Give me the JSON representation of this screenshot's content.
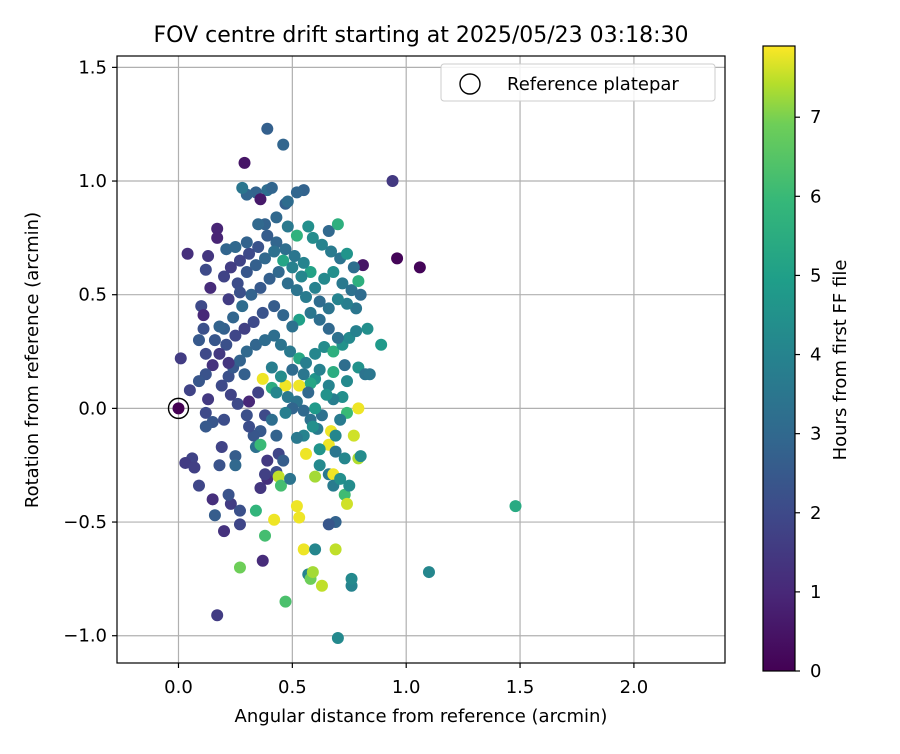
{
  "chart_data": {
    "type": "scatter",
    "title": "FOV centre drift starting at 2025/05/23 03:18:30",
    "xlabel": "Angular distance from reference (arcmin)",
    "ylabel": "Rotation from reference (arcmin)",
    "xlim": [
      -0.27,
      2.4
    ],
    "ylim": [
      -1.12,
      1.55
    ],
    "x_ticks": [
      0.0,
      0.5,
      1.0,
      1.5,
      2.0
    ],
    "x_tick_labels": [
      "0.0",
      "0.5",
      "1.0",
      "1.5",
      "2.0"
    ],
    "y_ticks": [
      -1.0,
      -0.5,
      0.0,
      0.5,
      1.0,
      1.5
    ],
    "y_tick_labels": [
      "−1.0",
      "−0.5",
      "0.0",
      "0.5",
      "1.0",
      "1.5"
    ],
    "grid": true,
    "legend": {
      "position": "top-right",
      "entries": [
        "Reference platepar"
      ]
    },
    "reference_point": {
      "x": 0.0,
      "y": 0.0
    },
    "colorbar": {
      "label": "Hours from first FF file",
      "range": [
        0,
        7.9
      ],
      "ticks": [
        0,
        1,
        2,
        3,
        4,
        5,
        6,
        7
      ],
      "tick_labels": [
        "0",
        "1",
        "2",
        "3",
        "4",
        "5",
        "6",
        "7"
      ],
      "colormap": "viridis"
    },
    "points": [
      {
        "x": 0.29,
        "y": 1.08,
        "c": 0.5
      },
      {
        "x": 0.39,
        "y": 1.23,
        "c": 2.7
      },
      {
        "x": 0.46,
        "y": 1.16,
        "c": 2.9
      },
      {
        "x": 0.94,
        "y": 1.0,
        "c": 1.5
      },
      {
        "x": 0.96,
        "y": 0.66,
        "c": 0.1
      },
      {
        "x": 1.06,
        "y": 0.62,
        "c": 0.1
      },
      {
        "x": 0.81,
        "y": 0.63,
        "c": 0.5
      },
      {
        "x": 0.17,
        "y": 0.79,
        "c": 0.9
      },
      {
        "x": 0.17,
        "y": 0.75,
        "c": 0.9
      },
      {
        "x": 0.13,
        "y": 0.67,
        "c": 1.4
      },
      {
        "x": 0.04,
        "y": 0.68,
        "c": 1.2
      },
      {
        "x": 0.12,
        "y": 0.61,
        "c": 2.0
      },
      {
        "x": 0.14,
        "y": 0.53,
        "c": 1.1
      },
      {
        "x": 0.1,
        "y": 0.45,
        "c": 2.0
      },
      {
        "x": 0.11,
        "y": 0.41,
        "c": 1.0
      },
      {
        "x": 0.11,
        "y": 0.35,
        "c": 2.2
      },
      {
        "x": 0.09,
        "y": 0.3,
        "c": 2.5
      },
      {
        "x": 0.12,
        "y": 0.24,
        "c": 2.0
      },
      {
        "x": 0.15,
        "y": 0.19,
        "c": 1.3
      },
      {
        "x": 0.01,
        "y": 0.22,
        "c": 1.6
      },
      {
        "x": 0.12,
        "y": 0.15,
        "c": 2.3
      },
      {
        "x": 0.09,
        "y": 0.12,
        "c": 2.4
      },
      {
        "x": 0.05,
        "y": 0.08,
        "c": 1.8
      },
      {
        "x": 0.13,
        "y": 0.04,
        "c": 1.5
      },
      {
        "x": 0.0,
        "y": 0.0,
        "c": 0.0
      },
      {
        "x": 0.12,
        "y": -0.02,
        "c": 2.0
      },
      {
        "x": 0.15,
        "y": -0.06,
        "c": 2.4
      },
      {
        "x": 0.12,
        "y": -0.08,
        "c": 2.5
      },
      {
        "x": 0.2,
        "y": -0.05,
        "c": 2.1
      },
      {
        "x": 0.06,
        "y": -0.22,
        "c": 1.8
      },
      {
        "x": 0.03,
        "y": -0.24,
        "c": 1.6
      },
      {
        "x": 0.07,
        "y": -0.26,
        "c": 1.7
      },
      {
        "x": 0.18,
        "y": -0.25,
        "c": 2.3
      },
      {
        "x": 0.19,
        "y": -0.17,
        "c": 1.8
      },
      {
        "x": 0.09,
        "y": -0.34,
        "c": 1.9
      },
      {
        "x": 0.15,
        "y": -0.4,
        "c": 1.2
      },
      {
        "x": 0.16,
        "y": -0.47,
        "c": 2.6
      },
      {
        "x": 0.2,
        "y": -0.54,
        "c": 1.3
      },
      {
        "x": 0.27,
        "y": -0.51,
        "c": 1.9
      },
      {
        "x": 0.23,
        "y": -0.42,
        "c": 1.6
      },
      {
        "x": 0.22,
        "y": -0.38,
        "c": 2.3
      },
      {
        "x": 0.27,
        "y": -0.45,
        "c": 2.2
      },
      {
        "x": 0.17,
        "y": -0.91,
        "c": 1.6
      },
      {
        "x": 0.27,
        "y": -0.7,
        "c": 6.9
      },
      {
        "x": 0.37,
        "y": -0.67,
        "c": 1.1
      },
      {
        "x": 0.38,
        "y": -0.56,
        "c": 6.2
      },
      {
        "x": 0.34,
        "y": -0.45,
        "c": 5.8
      },
      {
        "x": 0.42,
        "y": -0.49,
        "c": 7.8
      },
      {
        "x": 0.47,
        "y": -0.85,
        "c": 6.3
      },
      {
        "x": 0.52,
        "y": -0.43,
        "c": 7.8
      },
      {
        "x": 0.53,
        "y": -0.48,
        "c": 7.8
      },
      {
        "x": 0.55,
        "y": -0.62,
        "c": 7.8
      },
      {
        "x": 0.57,
        "y": -0.73,
        "c": 4.0
      },
      {
        "x": 0.58,
        "y": -0.75,
        "c": 6.9
      },
      {
        "x": 0.59,
        "y": -0.72,
        "c": 7.3
      },
      {
        "x": 0.6,
        "y": -0.62,
        "c": 4.1
      },
      {
        "x": 0.63,
        "y": -0.78,
        "c": 7.5
      },
      {
        "x": 0.69,
        "y": -0.62,
        "c": 7.5
      },
      {
        "x": 0.7,
        "y": -1.01,
        "c": 4.2
      },
      {
        "x": 0.76,
        "y": -0.78,
        "c": 4.0
      },
      {
        "x": 0.76,
        "y": -0.75,
        "c": 4.2
      },
      {
        "x": 1.1,
        "y": -0.72,
        "c": 4.1
      },
      {
        "x": 1.48,
        "y": -0.43,
        "c": 5.4
      },
      {
        "x": 0.39,
        "y": -0.31,
        "c": 1.2
      },
      {
        "x": 0.36,
        "y": -0.35,
        "c": 1.4
      },
      {
        "x": 0.38,
        "y": -0.29,
        "c": 1.7
      },
      {
        "x": 0.43,
        "y": -0.28,
        "c": 2.1
      },
      {
        "x": 0.44,
        "y": -0.3,
        "c": 7.5
      },
      {
        "x": 0.45,
        "y": -0.34,
        "c": 6.2
      },
      {
        "x": 0.49,
        "y": -0.31,
        "c": 3.4
      },
      {
        "x": 0.6,
        "y": -0.3,
        "c": 7.3
      },
      {
        "x": 0.62,
        "y": -0.25,
        "c": 4.2
      },
      {
        "x": 0.66,
        "y": -0.29,
        "c": 3.6
      },
      {
        "x": 0.68,
        "y": -0.29,
        "c": 7.8
      },
      {
        "x": 0.68,
        "y": -0.34,
        "c": 3.7
      },
      {
        "x": 0.71,
        "y": -0.31,
        "c": 4.4
      },
      {
        "x": 0.73,
        "y": -0.38,
        "c": 6.1
      },
      {
        "x": 0.75,
        "y": -0.34,
        "c": 4.3
      },
      {
        "x": 0.74,
        "y": -0.42,
        "c": 7.6
      },
      {
        "x": 0.69,
        "y": -0.5,
        "c": 2.8
      },
      {
        "x": 0.66,
        "y": -0.51,
        "c": 2.4
      },
      {
        "x": 0.79,
        "y": -0.22,
        "c": 7.4
      },
      {
        "x": 0.8,
        "y": -0.21,
        "c": 4.3
      },
      {
        "x": 0.77,
        "y": -0.12,
        "c": 7.6
      },
      {
        "x": 0.67,
        "y": -0.1,
        "c": 7.8
      },
      {
        "x": 0.66,
        "y": -0.16,
        "c": 7.8
      },
      {
        "x": 0.69,
        "y": -0.12,
        "c": 4.1
      },
      {
        "x": 0.79,
        "y": 0.0,
        "c": 7.8
      },
      {
        "x": 0.74,
        "y": -0.02,
        "c": 6.0
      },
      {
        "x": 0.72,
        "y": 0.05,
        "c": 4.4
      },
      {
        "x": 0.68,
        "y": 0.04,
        "c": 3.8
      },
      {
        "x": 0.74,
        "y": 0.12,
        "c": 4.2
      },
      {
        "x": 0.73,
        "y": 0.19,
        "c": 3.2
      },
      {
        "x": 0.79,
        "y": 0.18,
        "c": 4.5
      },
      {
        "x": 0.82,
        "y": 0.15,
        "c": 3.4
      },
      {
        "x": 0.66,
        "y": 0.1,
        "c": 4.0
      },
      {
        "x": 0.68,
        "y": 0.16,
        "c": 5.5
      },
      {
        "x": 0.6,
        "y": 0.13,
        "c": 4.6
      },
      {
        "x": 0.58,
        "y": 0.11,
        "c": 5.2
      },
      {
        "x": 0.53,
        "y": 0.1,
        "c": 7.8
      },
      {
        "x": 0.47,
        "y": 0.1,
        "c": 7.8
      },
      {
        "x": 0.37,
        "y": 0.13,
        "c": 7.8
      },
      {
        "x": 0.41,
        "y": 0.09,
        "c": 5.5
      },
      {
        "x": 0.43,
        "y": 0.07,
        "c": 4.1
      },
      {
        "x": 0.48,
        "y": 0.05,
        "c": 3.6
      },
      {
        "x": 0.52,
        "y": 0.03,
        "c": 3.4
      },
      {
        "x": 0.5,
        "y": 0.0,
        "c": 2.9
      },
      {
        "x": 0.55,
        "y": -0.01,
        "c": 3.0
      },
      {
        "x": 0.58,
        "y": -0.05,
        "c": 3.3
      },
      {
        "x": 0.61,
        "y": -0.09,
        "c": 3.7
      },
      {
        "x": 0.55,
        "y": -0.12,
        "c": 4.0
      },
      {
        "x": 0.52,
        "y": -0.13,
        "c": 3.6
      },
      {
        "x": 0.43,
        "y": -0.12,
        "c": 2.8
      },
      {
        "x": 0.36,
        "y": -0.1,
        "c": 2.5
      },
      {
        "x": 0.33,
        "y": -0.12,
        "c": 2.4
      },
      {
        "x": 0.31,
        "y": -0.08,
        "c": 2.1
      },
      {
        "x": 0.25,
        "y": -0.21,
        "c": 2.6
      },
      {
        "x": 0.25,
        "y": -0.25,
        "c": 3.0
      },
      {
        "x": 0.34,
        "y": -0.17,
        "c": 3.3
      },
      {
        "x": 0.3,
        "y": -0.03,
        "c": 2.2
      },
      {
        "x": 0.26,
        "y": 0.02,
        "c": 2.0
      },
      {
        "x": 0.23,
        "y": 0.06,
        "c": 1.8
      },
      {
        "x": 0.19,
        "y": 0.1,
        "c": 2.0
      },
      {
        "x": 0.22,
        "y": 0.14,
        "c": 2.2
      },
      {
        "x": 0.24,
        "y": 0.18,
        "c": 2.5
      },
      {
        "x": 0.27,
        "y": 0.21,
        "c": 2.8
      },
      {
        "x": 0.3,
        "y": 0.25,
        "c": 3.0
      },
      {
        "x": 0.34,
        "y": 0.28,
        "c": 2.9
      },
      {
        "x": 0.38,
        "y": 0.3,
        "c": 3.1
      },
      {
        "x": 0.42,
        "y": 0.32,
        "c": 3.2
      },
      {
        "x": 0.45,
        "y": 0.28,
        "c": 3.4
      },
      {
        "x": 0.49,
        "y": 0.25,
        "c": 3.6
      },
      {
        "x": 0.53,
        "y": 0.22,
        "c": 5.3
      },
      {
        "x": 0.56,
        "y": 0.2,
        "c": 3.8
      },
      {
        "x": 0.6,
        "y": 0.24,
        "c": 4.1
      },
      {
        "x": 0.64,
        "y": 0.27,
        "c": 4.3
      },
      {
        "x": 0.68,
        "y": 0.25,
        "c": 5.6
      },
      {
        "x": 0.72,
        "y": 0.28,
        "c": 4.5
      },
      {
        "x": 0.75,
        "y": 0.31,
        "c": 4.2
      },
      {
        "x": 0.78,
        "y": 0.34,
        "c": 3.9
      },
      {
        "x": 0.83,
        "y": 0.35,
        "c": 4.4
      },
      {
        "x": 0.89,
        "y": 0.28,
        "c": 4.8
      },
      {
        "x": 0.84,
        "y": 0.15,
        "c": 3.5
      },
      {
        "x": 0.7,
        "y": 0.31,
        "c": 3.3
      },
      {
        "x": 0.66,
        "y": 0.35,
        "c": 3.0
      },
      {
        "x": 0.62,
        "y": 0.39,
        "c": 3.2
      },
      {
        "x": 0.58,
        "y": 0.42,
        "c": 3.5
      },
      {
        "x": 0.53,
        "y": 0.39,
        "c": 5.0
      },
      {
        "x": 0.5,
        "y": 0.36,
        "c": 3.3
      },
      {
        "x": 0.46,
        "y": 0.41,
        "c": 2.9
      },
      {
        "x": 0.42,
        "y": 0.45,
        "c": 2.6
      },
      {
        "x": 0.37,
        "y": 0.42,
        "c": 2.3
      },
      {
        "x": 0.33,
        "y": 0.38,
        "c": 2.0
      },
      {
        "x": 0.29,
        "y": 0.35,
        "c": 1.7
      },
      {
        "x": 0.25,
        "y": 0.32,
        "c": 1.9
      },
      {
        "x": 0.21,
        "y": 0.28,
        "c": 2.2
      },
      {
        "x": 0.18,
        "y": 0.24,
        "c": 1.5
      },
      {
        "x": 0.16,
        "y": 0.3,
        "c": 2.4
      },
      {
        "x": 0.2,
        "y": 0.35,
        "c": 2.7
      },
      {
        "x": 0.24,
        "y": 0.4,
        "c": 2.9
      },
      {
        "x": 0.28,
        "y": 0.45,
        "c": 3.1
      },
      {
        "x": 0.32,
        "y": 0.5,
        "c": 2.8
      },
      {
        "x": 0.36,
        "y": 0.53,
        "c": 2.5
      },
      {
        "x": 0.4,
        "y": 0.57,
        "c": 2.7
      },
      {
        "x": 0.44,
        "y": 0.6,
        "c": 3.0
      },
      {
        "x": 0.48,
        "y": 0.55,
        "c": 3.2
      },
      {
        "x": 0.52,
        "y": 0.52,
        "c": 3.4
      },
      {
        "x": 0.56,
        "y": 0.49,
        "c": 3.7
      },
      {
        "x": 0.6,
        "y": 0.53,
        "c": 3.9
      },
      {
        "x": 0.64,
        "y": 0.57,
        "c": 4.2
      },
      {
        "x": 0.68,
        "y": 0.6,
        "c": 4.4
      },
      {
        "x": 0.72,
        "y": 0.55,
        "c": 3.6
      },
      {
        "x": 0.76,
        "y": 0.52,
        "c": 3.3
      },
      {
        "x": 0.8,
        "y": 0.5,
        "c": 3.1
      },
      {
        "x": 0.78,
        "y": 0.44,
        "c": 3.5
      },
      {
        "x": 0.74,
        "y": 0.46,
        "c": 3.8
      },
      {
        "x": 0.7,
        "y": 0.48,
        "c": 4.0
      },
      {
        "x": 0.66,
        "y": 0.44,
        "c": 3.4
      },
      {
        "x": 0.62,
        "y": 0.47,
        "c": 3.1
      },
      {
        "x": 0.58,
        "y": 0.6,
        "c": 5.1
      },
      {
        "x": 0.55,
        "y": 0.64,
        "c": 4.0
      },
      {
        "x": 0.51,
        "y": 0.67,
        "c": 3.5
      },
      {
        "x": 0.47,
        "y": 0.7,
        "c": 3.2
      },
      {
        "x": 0.43,
        "y": 0.73,
        "c": 2.9
      },
      {
        "x": 0.39,
        "y": 0.76,
        "c": 2.6
      },
      {
        "x": 0.35,
        "y": 0.71,
        "c": 2.3
      },
      {
        "x": 0.31,
        "y": 0.68,
        "c": 2.0
      },
      {
        "x": 0.27,
        "y": 0.65,
        "c": 1.8
      },
      {
        "x": 0.23,
        "y": 0.62,
        "c": 1.6
      },
      {
        "x": 0.2,
        "y": 0.58,
        "c": 1.8
      },
      {
        "x": 0.26,
        "y": 0.55,
        "c": 2.1
      },
      {
        "x": 0.3,
        "y": 0.6,
        "c": 2.4
      },
      {
        "x": 0.34,
        "y": 0.63,
        "c": 2.7
      },
      {
        "x": 0.38,
        "y": 0.66,
        "c": 3.0
      },
      {
        "x": 0.42,
        "y": 0.69,
        "c": 3.3
      },
      {
        "x": 0.46,
        "y": 0.65,
        "c": 5.2
      },
      {
        "x": 0.5,
        "y": 0.62,
        "c": 3.9
      },
      {
        "x": 0.54,
        "y": 0.58,
        "c": 4.1
      },
      {
        "x": 0.59,
        "y": 0.75,
        "c": 4.3
      },
      {
        "x": 0.63,
        "y": 0.72,
        "c": 4.0
      },
      {
        "x": 0.67,
        "y": 0.69,
        "c": 3.7
      },
      {
        "x": 0.71,
        "y": 0.66,
        "c": 3.4
      },
      {
        "x": 0.74,
        "y": 0.68,
        "c": 4.6
      },
      {
        "x": 0.77,
        "y": 0.62,
        "c": 3.2
      },
      {
        "x": 0.79,
        "y": 0.56,
        "c": 5.6
      },
      {
        "x": 0.66,
        "y": 0.78,
        "c": 3.0
      },
      {
        "x": 0.7,
        "y": 0.81,
        "c": 5.6
      },
      {
        "x": 0.57,
        "y": 0.8,
        "c": 4.4
      },
      {
        "x": 0.52,
        "y": 0.76,
        "c": 5.7
      },
      {
        "x": 0.48,
        "y": 0.8,
        "c": 3.6
      },
      {
        "x": 0.43,
        "y": 0.84,
        "c": 3.0
      },
      {
        "x": 0.38,
        "y": 0.81,
        "c": 2.8
      },
      {
        "x": 0.35,
        "y": 0.81,
        "c": 3.0
      },
      {
        "x": 0.47,
        "y": 0.9,
        "c": 2.7
      },
      {
        "x": 0.48,
        "y": 0.91,
        "c": 3.1
      },
      {
        "x": 0.39,
        "y": 0.96,
        "c": 3.2
      },
      {
        "x": 0.41,
        "y": 0.97,
        "c": 2.9
      },
      {
        "x": 0.34,
        "y": 0.95,
        "c": 2.8
      },
      {
        "x": 0.36,
        "y": 0.92,
        "c": 0.6
      },
      {
        "x": 0.3,
        "y": 0.94,
        "c": 2.9
      },
      {
        "x": 0.28,
        "y": 0.97,
        "c": 3.5
      },
      {
        "x": 0.55,
        "y": 0.96,
        "c": 2.8
      },
      {
        "x": 0.52,
        "y": 0.95,
        "c": 2.9
      },
      {
        "x": 0.21,
        "y": 0.7,
        "c": 2.9
      },
      {
        "x": 0.25,
        "y": 0.71,
        "c": 3.0
      },
      {
        "x": 0.3,
        "y": 0.73,
        "c": 2.8
      },
      {
        "x": 0.22,
        "y": 0.48,
        "c": 1.6
      },
      {
        "x": 0.27,
        "y": 0.51,
        "c": 2.2
      },
      {
        "x": 0.18,
        "y": 0.36,
        "c": 2.8
      },
      {
        "x": 0.22,
        "y": 0.2,
        "c": 1.4
      },
      {
        "x": 0.29,
        "y": 0.15,
        "c": 2.7
      },
      {
        "x": 0.31,
        "y": 0.03,
        "c": 1.0
      },
      {
        "x": 0.35,
        "y": 0.07,
        "c": 1.8
      },
      {
        "x": 0.38,
        "y": -0.03,
        "c": 2.0
      },
      {
        "x": 0.41,
        "y": -0.05,
        "c": 3.2
      },
      {
        "x": 0.44,
        "y": -0.2,
        "c": 1.9
      },
      {
        "x": 0.46,
        "y": -0.23,
        "c": 2.6
      },
      {
        "x": 0.39,
        "y": -0.23,
        "c": 1.5
      },
      {
        "x": 0.36,
        "y": -0.16,
        "c": 6.0
      },
      {
        "x": 0.41,
        "y": 0.18,
        "c": 3.8
      },
      {
        "x": 0.45,
        "y": 0.14,
        "c": 4.3
      },
      {
        "x": 0.5,
        "y": 0.17,
        "c": 3.1
      },
      {
        "x": 0.55,
        "y": 0.15,
        "c": 3.5
      },
      {
        "x": 0.62,
        "y": 0.17,
        "c": 3.9
      },
      {
        "x": 0.65,
        "y": 0.06,
        "c": 4.5
      },
      {
        "x": 0.71,
        "y": -0.05,
        "c": 3.7
      },
      {
        "x": 0.63,
        "y": -0.03,
        "c": 3.3
      },
      {
        "x": 0.57,
        "y": 0.07,
        "c": 3.0
      },
      {
        "x": 0.6,
        "y": 0.0,
        "c": 4.8
      },
      {
        "x": 0.69,
        "y": -0.19,
        "c": 3.5
      },
      {
        "x": 0.73,
        "y": -0.22,
        "c": 4.1
      },
      {
        "x": 0.62,
        "y": -0.18,
        "c": 4.6
      },
      {
        "x": 0.56,
        "y": -0.2,
        "c": 7.8
      },
      {
        "x": 0.59,
        "y": -0.08,
        "c": 4.4
      },
      {
        "x": 0.47,
        "y": -0.02,
        "c": 3.8
      }
    ]
  }
}
